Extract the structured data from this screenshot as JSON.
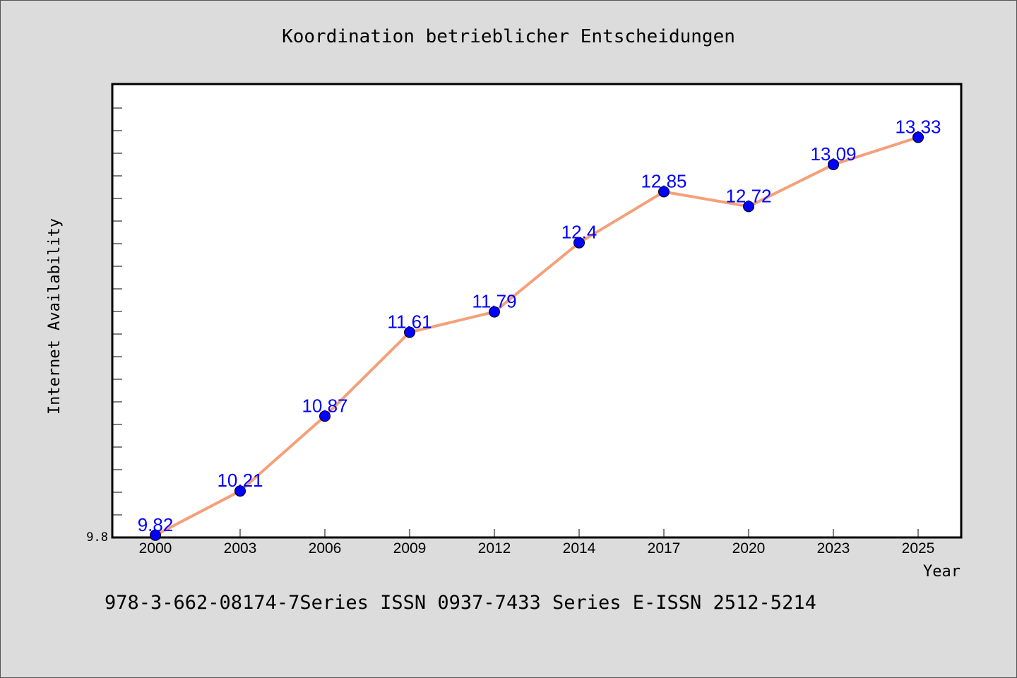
{
  "chart_data": {
    "type": "line",
    "title": "Koordination betrieblicher Entscheidungen",
    "xlabel": "Year",
    "ylabel": "Internet Availability",
    "categories": [
      "2000",
      "2003",
      "2006",
      "2009",
      "2012",
      "2014",
      "2017",
      "2020",
      "2023",
      "2025"
    ],
    "series": [
      {
        "values": [
          9.82,
          10.21,
          10.87,
          11.61,
          11.79,
          12.4,
          12.85,
          12.72,
          13.09,
          13.33
        ],
        "labels": [
          "9.82",
          "10.21",
          "10.87",
          "11.61",
          "11.79",
          "12.4",
          "12.85",
          "12.72",
          "13.09",
          "13.33"
        ]
      }
    ],
    "yticks": [
      "9.8"
    ],
    "ylim": [
      9.8,
      13.8
    ],
    "line_color": "#f4a07a",
    "marker_color": "#0000ff",
    "grid": false
  },
  "footer": "978-3-662-08174-7Series ISSN 0937-7433 Series E-ISSN 2512-5214"
}
